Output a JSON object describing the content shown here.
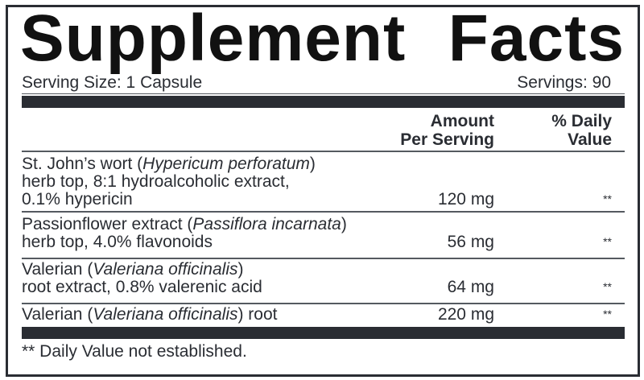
{
  "title": {
    "word1": "Supplement",
    "word2": "Facts"
  },
  "serving_size": "Serving Size: 1 Capsule",
  "servings": "Servings: 90",
  "header": {
    "amount_line1": "Amount",
    "amount_line2": "Per Serving",
    "dv_line1": "% Daily",
    "dv_line2": "Value"
  },
  "rows": [
    {
      "name": "St. John’s wort (",
      "latin": "Hypericum perforatum",
      "close": ")",
      "line2": "herb top, 8:1 hydroalcoholic extract,",
      "line3": "0.1% hypericin",
      "amount": "120 mg",
      "dv": "**"
    },
    {
      "name": "Passionflower extract (",
      "latin": "Passiflora incarnata",
      "close": ")",
      "line2": "herb top, 4.0% flavonoids",
      "amount": "56 mg",
      "dv": "**"
    },
    {
      "name": "Valerian (",
      "latin": "Valeriana officinalis",
      "close": ")",
      "line2": "root extract, 0.8% valerenic acid",
      "amount": "64 mg",
      "dv": "**"
    },
    {
      "name": "Valerian (",
      "latin": "Valeriana officinalis",
      "close": ") root",
      "amount": "220 mg",
      "dv": "**"
    }
  ],
  "footnote": "** Daily Value not established.",
  "colors": {
    "ink": "#2a2d33"
  }
}
